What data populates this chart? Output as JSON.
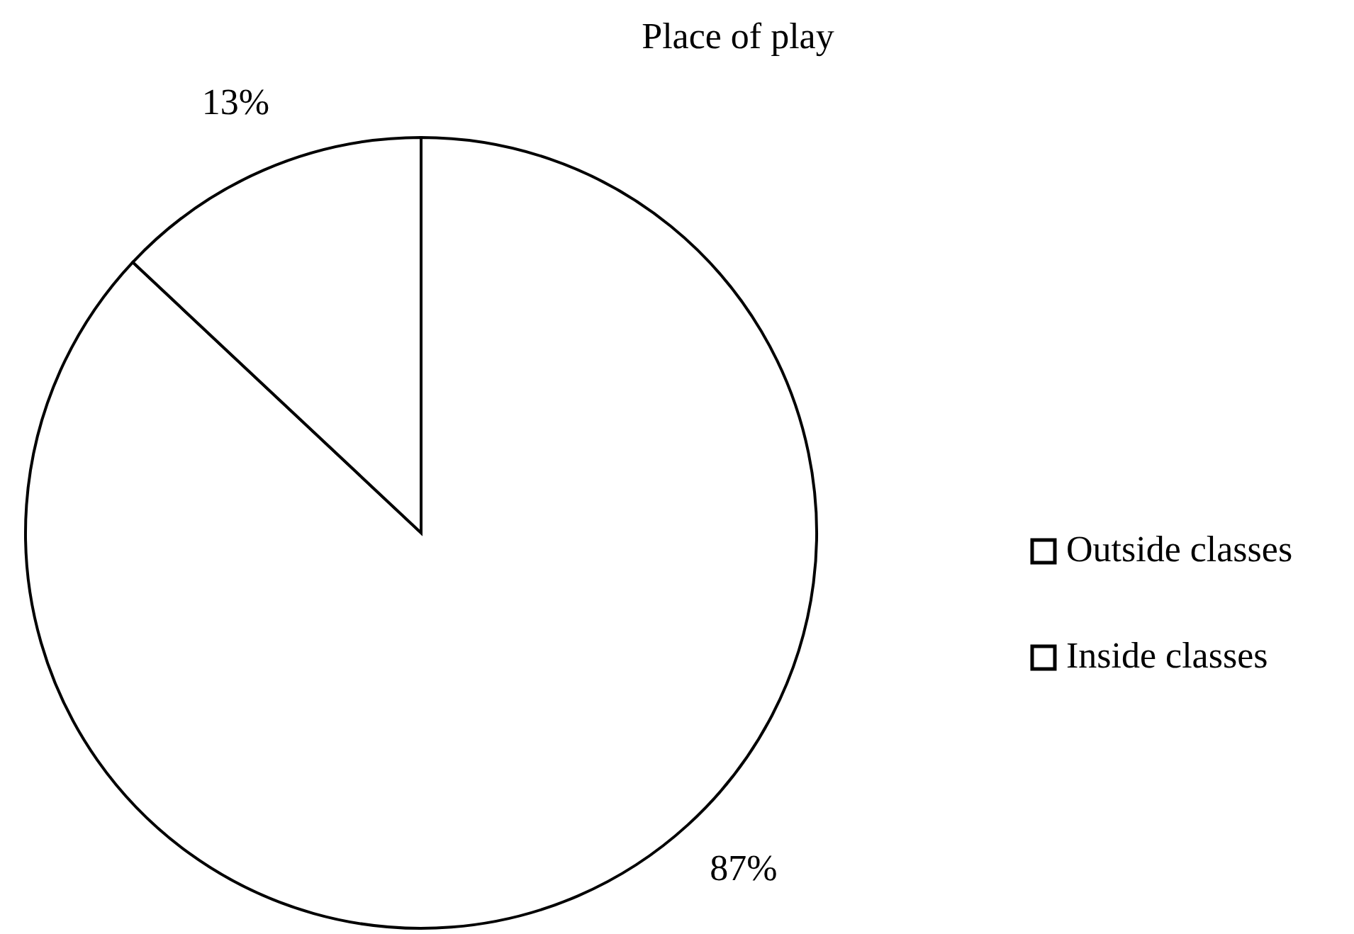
{
  "chart_data": {
    "type": "pie",
    "title": "Place of play",
    "categories": [
      "Outside classes",
      "Inside classes"
    ],
    "values": [
      87,
      13
    ],
    "colors": [
      "#ffffff",
      "#ffffff"
    ],
    "value_labels": [
      "87%",
      "13%"
    ],
    "legend": "right"
  }
}
